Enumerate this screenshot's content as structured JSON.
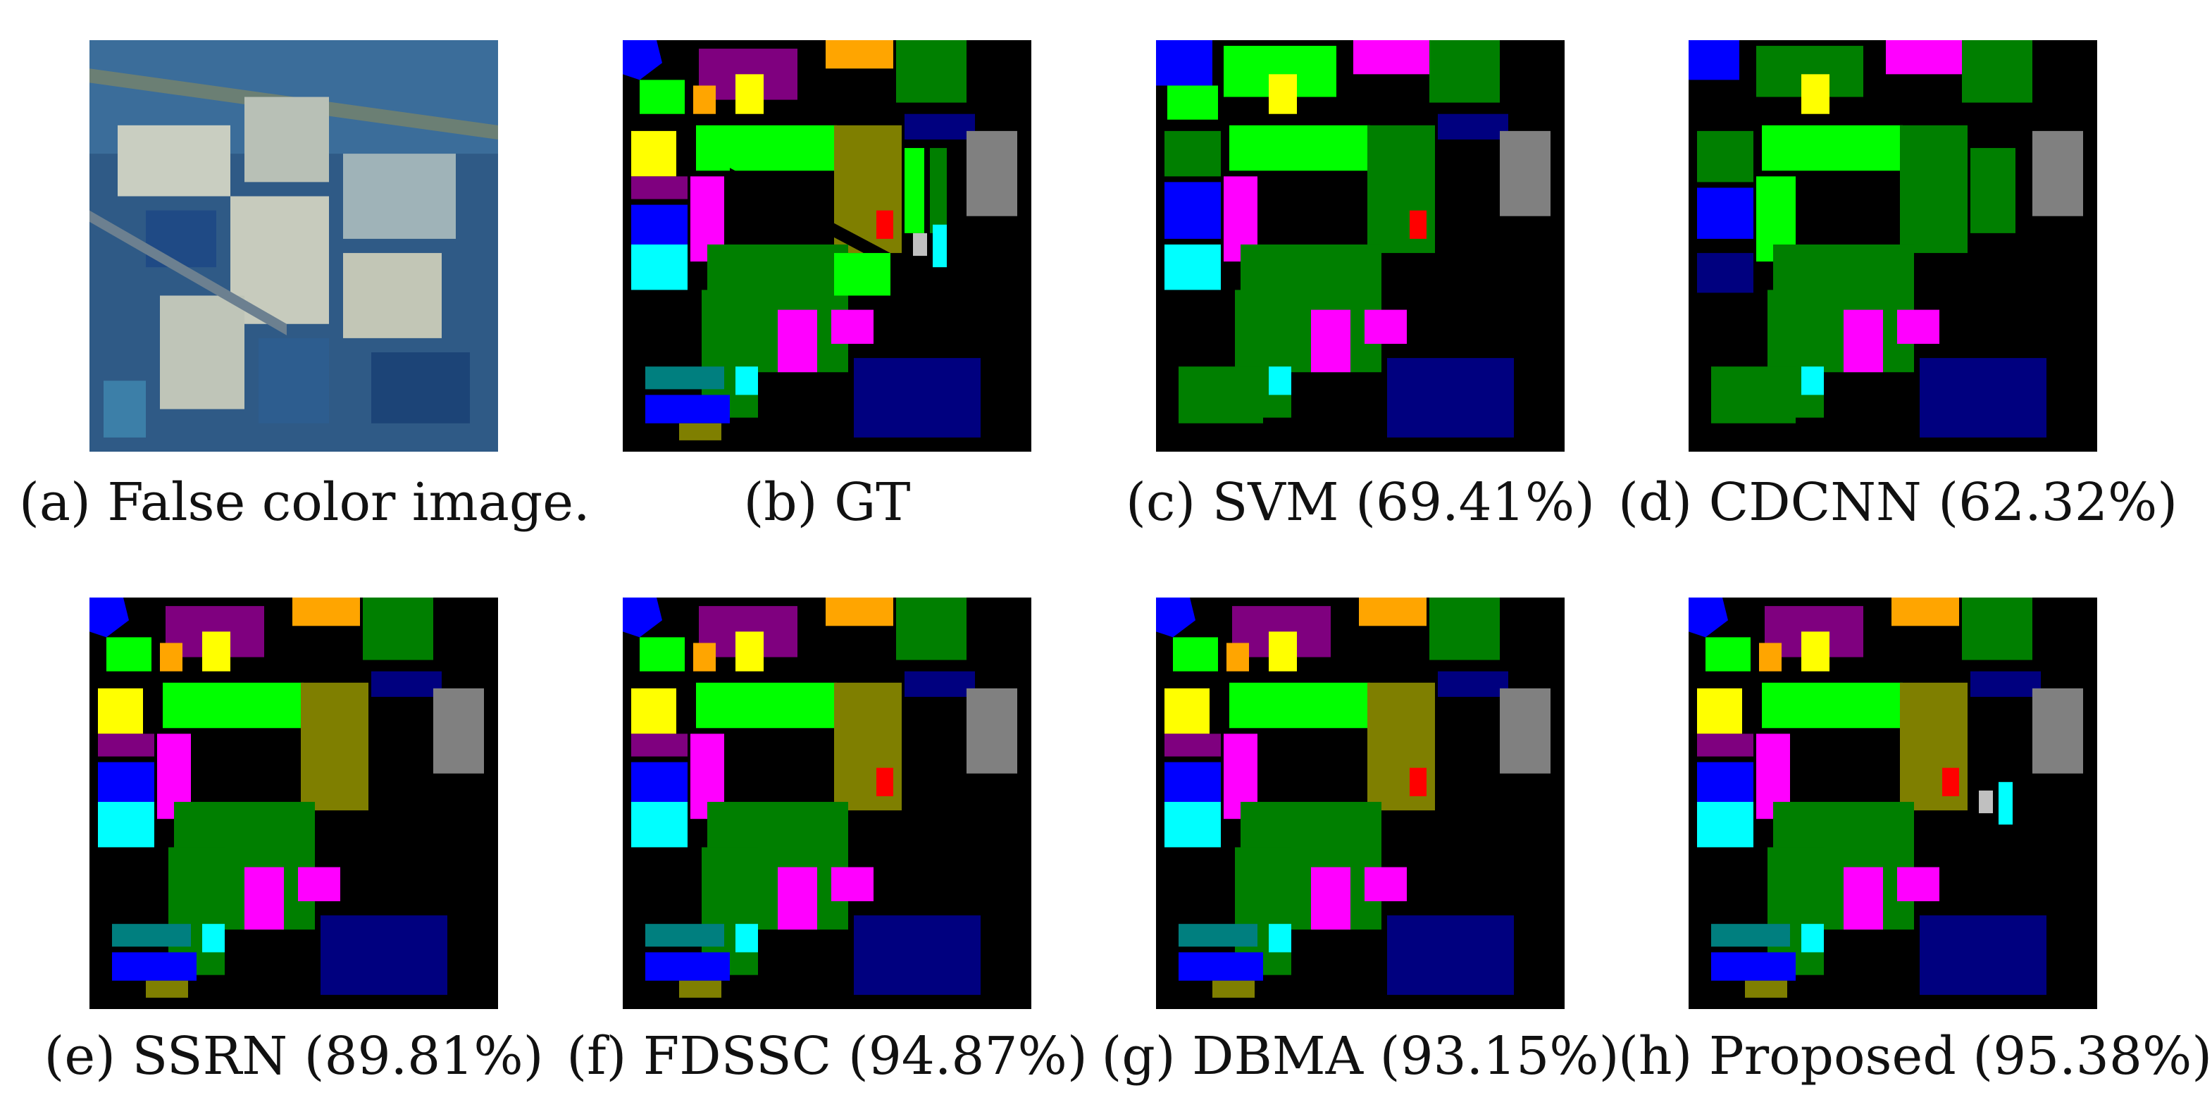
{
  "panels": [
    {
      "key": "a",
      "caption": "(a) False color image.",
      "kind": "false-color"
    },
    {
      "key": "b",
      "caption": "(b) GT",
      "kind": "gt"
    },
    {
      "key": "c",
      "caption": "(c) SVM (69.41%)",
      "kind": "svm"
    },
    {
      "key": "d",
      "caption": "(d) CDCNN (62.32%)",
      "kind": "cdcnn"
    },
    {
      "key": "e",
      "caption": "(e) SSRN (89.81%)",
      "kind": "ssrn"
    },
    {
      "key": "f",
      "caption": "(f) FDSSC (94.87%)",
      "kind": "fdssc"
    },
    {
      "key": "g",
      "caption": "(g) DBMA (93.15%)",
      "kind": "dbma"
    },
    {
      "key": "h",
      "caption": "(h) Proposed (95.38%)",
      "kind": "proposed"
    }
  ],
  "palette": {
    "background": "#000000",
    "blue": "#0000ff",
    "navy": "#00007f",
    "green": "#007f00",
    "lime": "#00ff00",
    "olive": "#7f7f00",
    "purple": "#7f007f",
    "magenta": "#ff00ff",
    "orange": "#ffa500",
    "yellow": "#ffff00",
    "cyan": "#00ffff",
    "teal": "#007f7f",
    "gray": "#808080",
    "red": "#ff0000",
    "silver": "#c0c0c0"
  }
}
